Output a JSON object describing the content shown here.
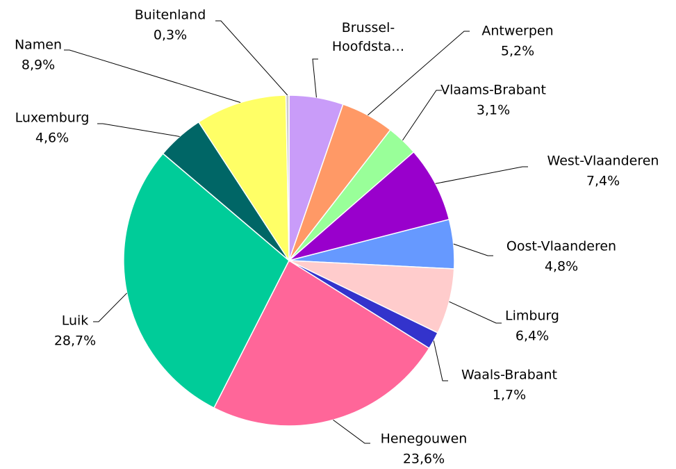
{
  "chart_data": {
    "type": "pie",
    "categories": [
      "Brussel-Hoofdsta…",
      "Antwerpen",
      "Vlaams-Brabant",
      "West-Vlaanderen",
      "Oost-Vlaanderen",
      "Limburg",
      "Waals-Brabant",
      "Henegouwen",
      "Luik",
      "Luxemburg",
      "Namen",
      "Buitenland"
    ],
    "values": [
      5.3,
      5.2,
      3.1,
      7.4,
      4.8,
      6.4,
      1.7,
      23.6,
      28.7,
      4.6,
      8.9,
      0.3
    ],
    "value_labels": [
      null,
      "5,2%",
      "3,1%",
      "7,4%",
      "4,8%",
      "6,4%",
      "1,7%",
      "23,6%",
      "28,7%",
      "4,6%",
      "8,9%",
      "0,3%"
    ],
    "colors": [
      "#c99cf9",
      "#ff9966",
      "#99ff99",
      "#9900cc",
      "#6699ff",
      "#ffcccc",
      "#3333cc",
      "#ff6699",
      "#00cc99",
      "#006666",
      "#ffff66",
      "#cccccc"
    ]
  }
}
